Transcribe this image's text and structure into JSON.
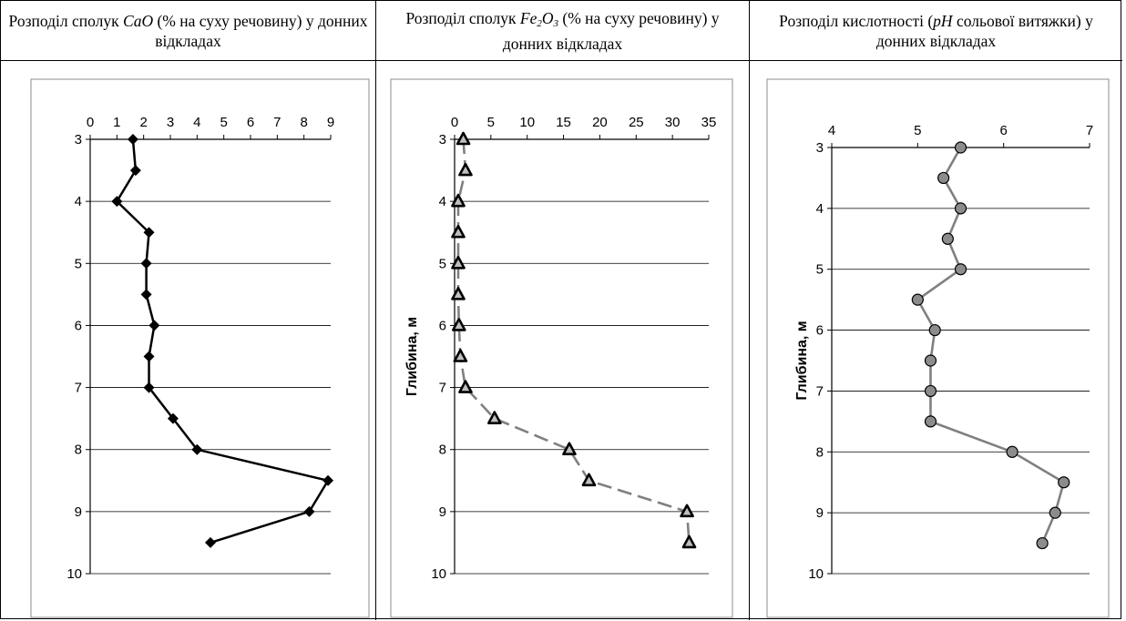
{
  "headers": [
    {
      "pre": "Розподіл сполук ",
      "em": "CaO",
      "post": " (% на суху речовину) у донних відкладах"
    },
    {
      "pre": "Розподіл сполук ",
      "emParts": [
        "Fe",
        "2",
        "O",
        "3"
      ],
      "post": " (% на суху речовину) у донних відкладах"
    },
    {
      "pre": "Розподіл кислотності (",
      "em": "pH",
      "post": " сольової витяжки) у донних відкладах"
    }
  ],
  "chart_data": [
    {
      "type": "line",
      "ylabel": "",
      "xlim": [
        0,
        9
      ],
      "xticks": [
        "0",
        "1",
        "2",
        "3",
        "4",
        "5",
        "6",
        "7",
        "8",
        "9"
      ],
      "ylim": [
        3,
        10
      ],
      "yticks": [
        "3",
        "4",
        "5",
        "6",
        "7",
        "8",
        "9",
        "10"
      ],
      "grid": "horizontal",
      "series": [
        {
          "color": "#000000",
          "marker": "diamond",
          "line": "solid",
          "points": [
            [
              1.6,
              3.0
            ],
            [
              1.7,
              3.5
            ],
            [
              1.0,
              4.0
            ],
            [
              2.2,
              4.5
            ],
            [
              2.1,
              5.0
            ],
            [
              2.1,
              5.5
            ],
            [
              2.4,
              6.0
            ],
            [
              2.2,
              6.5
            ],
            [
              2.2,
              7.0
            ],
            [
              3.1,
              7.5
            ],
            [
              4.0,
              8.0
            ],
            [
              8.9,
              8.5
            ],
            [
              8.2,
              9.0
            ],
            [
              4.5,
              9.5
            ]
          ]
        }
      ]
    },
    {
      "type": "line",
      "ylabel": "Глибина, м",
      "xlim": [
        0,
        35
      ],
      "xticks": [
        "0",
        "5",
        "10",
        "15",
        "20",
        "25",
        "30",
        "35"
      ],
      "ylim": [
        3,
        10
      ],
      "yticks": [
        "3",
        "4",
        "5",
        "6",
        "7",
        "8",
        "9",
        "10"
      ],
      "grid": "horizontal",
      "series": [
        {
          "color": "#808080",
          "marker": "triangle",
          "line": "dashed",
          "points": [
            [
              1.2,
              3.0
            ],
            [
              1.5,
              3.5
            ],
            [
              0.5,
              4.0
            ],
            [
              0.5,
              4.5
            ],
            [
              0.5,
              5.0
            ],
            [
              0.5,
              5.5
            ],
            [
              0.6,
              6.0
            ],
            [
              0.8,
              6.5
            ],
            [
              1.5,
              7.0
            ],
            [
              5.5,
              7.5
            ],
            [
              15.8,
              8.0
            ],
            [
              18.5,
              8.5
            ],
            [
              32.0,
              9.0
            ],
            [
              32.3,
              9.5
            ]
          ]
        }
      ]
    },
    {
      "type": "line",
      "ylabel": "Глибина, м",
      "xlim": [
        4,
        7
      ],
      "xticks": [
        "4",
        "5",
        "6",
        "7"
      ],
      "ylim": [
        3,
        10
      ],
      "yticks": [
        "3",
        "4",
        "5",
        "6",
        "7",
        "8",
        "9",
        "10"
      ],
      "grid": "horizontal",
      "series": [
        {
          "color": "#808080",
          "marker": "circle",
          "line": "solid",
          "points": [
            [
              5.5,
              3.0
            ],
            [
              5.3,
              3.5
            ],
            [
              5.5,
              4.0
            ],
            [
              5.35,
              4.5
            ],
            [
              5.5,
              5.0
            ],
            [
              5.0,
              5.5
            ],
            [
              5.2,
              6.0
            ],
            [
              5.15,
              6.5
            ],
            [
              5.15,
              7.0
            ],
            [
              5.15,
              7.5
            ],
            [
              6.1,
              8.0
            ],
            [
              6.7,
              8.5
            ],
            [
              6.6,
              9.0
            ],
            [
              6.45,
              9.5
            ]
          ]
        }
      ]
    }
  ]
}
